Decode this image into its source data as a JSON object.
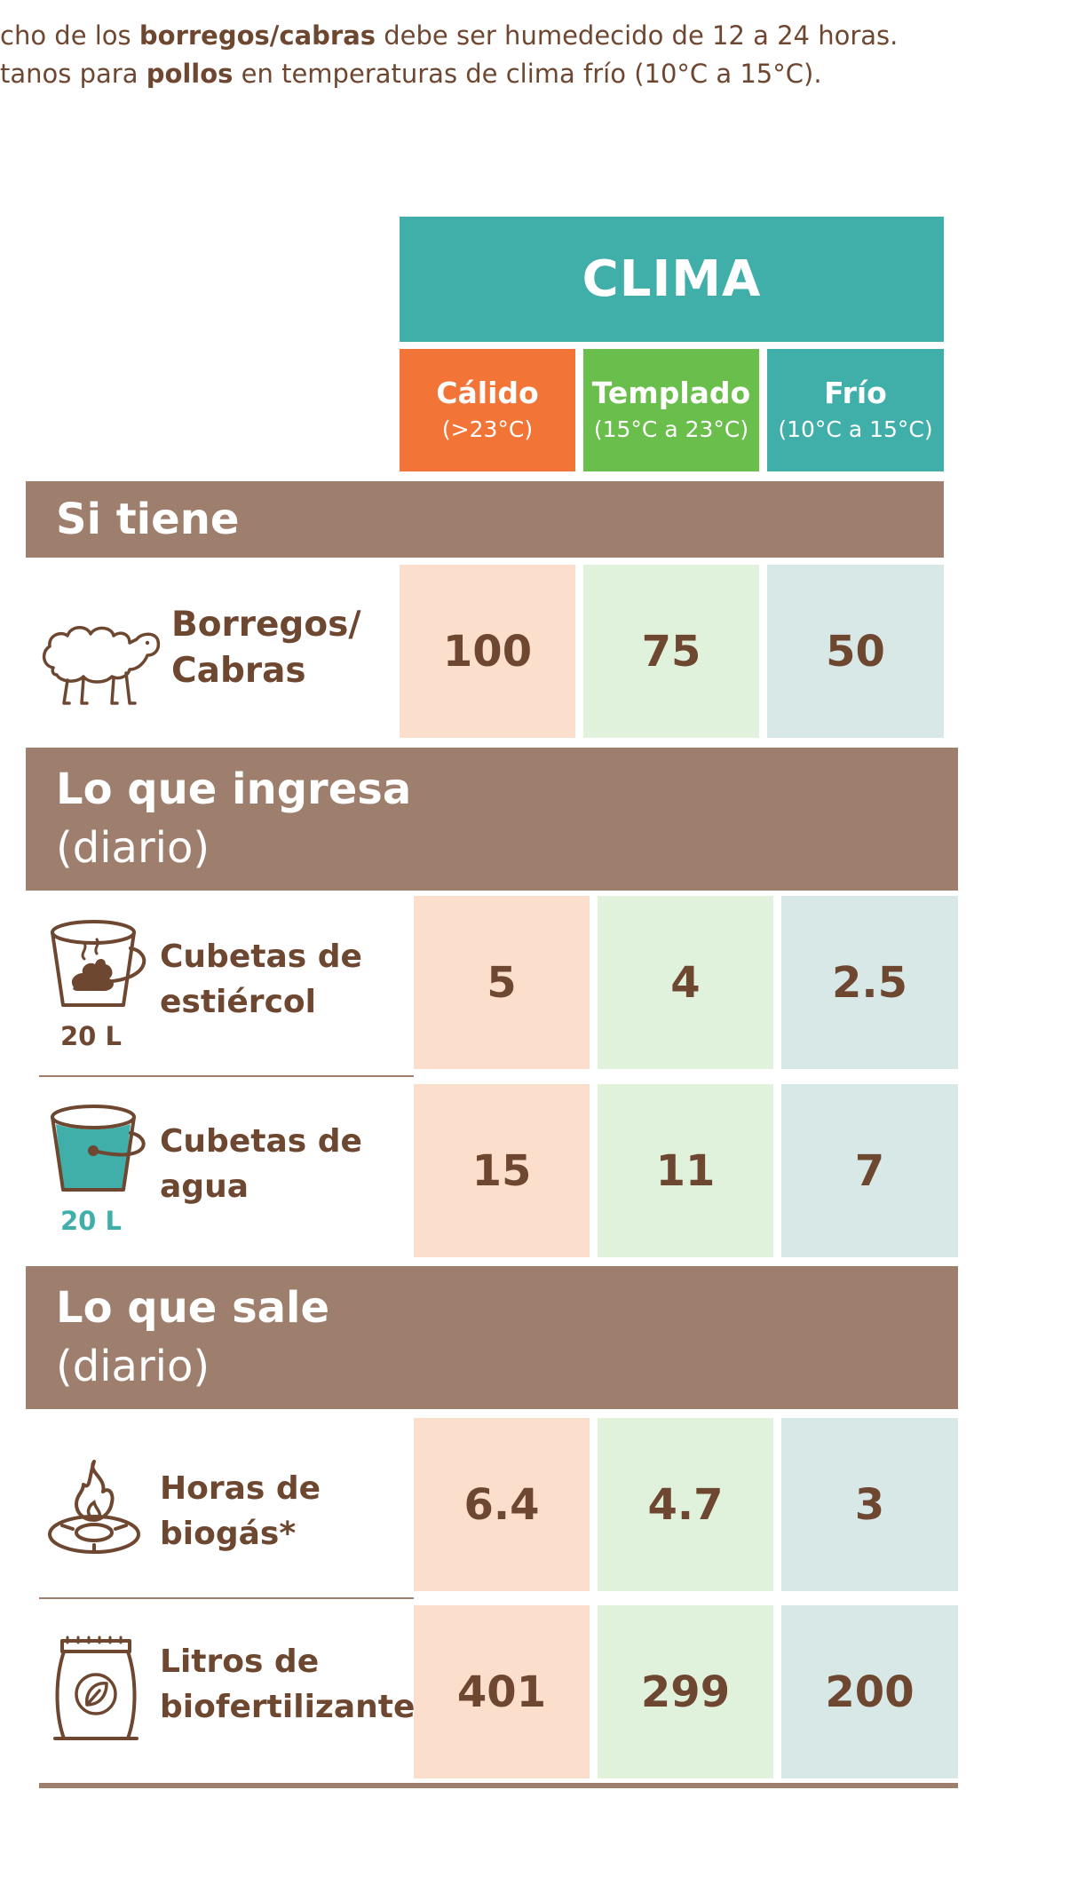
{
  "intro": {
    "line1": {
      "pre": "cho de los ",
      "bold": "borregos/cabras",
      "post": " debe ser humedecido de 12 a 24 horas."
    },
    "line2": {
      "pre": "tanos para ",
      "bold": "pollos",
      "post": " en temperaturas de clima frío (10°C a 15°C)."
    }
  },
  "table": {
    "title": "CLIMA",
    "columns": [
      {
        "name": "Cálido",
        "range": "(>23°C)",
        "color": "#f27437"
      },
      {
        "name": "Templado",
        "range": "(15°C a 23°C)",
        "color": "#6abe4b"
      },
      {
        "name": "Frío",
        "range": "(10°C a 15°C)",
        "color": "#40afa9"
      }
    ],
    "sections": {
      "tiene": {
        "title": "Si tiene"
      },
      "ingresa": {
        "title": "Lo que ingresa",
        "subtitle": "(diario)"
      },
      "sale": {
        "title": "Lo que sale",
        "subtitle": "(diario)"
      }
    },
    "rows": {
      "borregos": {
        "label_line1": "Borregos/",
        "label_line2": "Cabras",
        "icon": "sheep-icon",
        "values": [
          "100",
          "75",
          "50"
        ]
      },
      "estiercol": {
        "label_line1": "Cubetas de",
        "label_line2": "estiércol",
        "volume": "20 L",
        "icon": "manure-bucket-icon",
        "values": [
          "5",
          "4",
          "2.5"
        ]
      },
      "agua": {
        "label_line1": "Cubetas de",
        "label_line2": "agua",
        "volume": "20 L",
        "icon": "water-bucket-icon",
        "values": [
          "15",
          "11",
          "7"
        ]
      },
      "biogas": {
        "label_line1": "Horas de",
        "label_line2": "biogás*",
        "icon": "gas-stove-icon",
        "values": [
          "6.4",
          "4.7",
          "3"
        ]
      },
      "biofertilizante": {
        "label_line1": "Litros de",
        "label_line2": "biofertilizante",
        "icon": "fertilizer-bag-icon",
        "values": [
          "401",
          "299",
          "200"
        ]
      }
    },
    "colors": {
      "band": "#9e7e6c",
      "text": "#6e4731",
      "teal": "#40afa9",
      "warm_cell": "#fcdecd",
      "temperate_cell": "#e1f2dc",
      "cold_cell": "#d8e8e7"
    }
  }
}
